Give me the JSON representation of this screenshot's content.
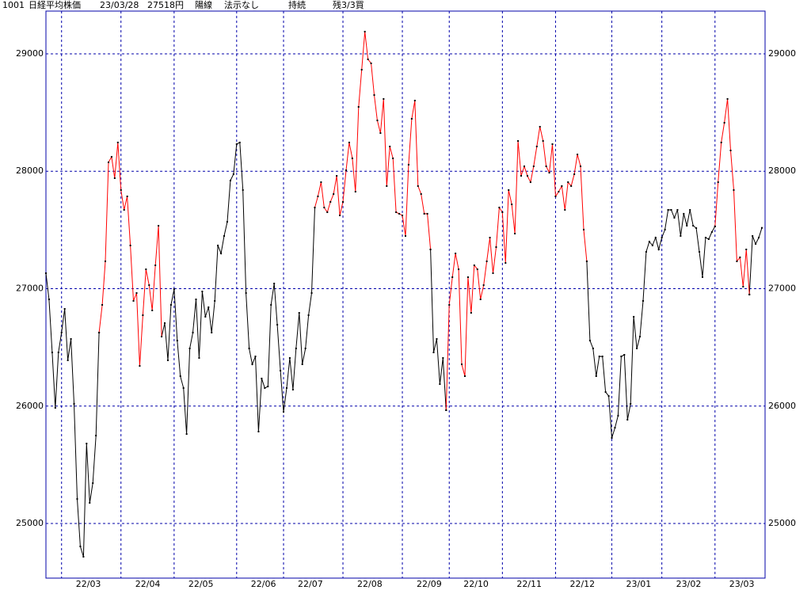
{
  "chart_data": {
    "type": "line",
    "header": {
      "code": "1001",
      "name": "日経平均株価",
      "date": "23/03/28",
      "price": "27518円",
      "candle": "陽線",
      "signal": "法示なし",
      "trend": "持続",
      "position": "残3/3買"
    },
    "categories": [
      null,
      null,
      null,
      null,
      null,
      "22/03",
      null,
      null,
      null,
      null,
      null,
      null,
      null,
      null,
      null,
      null,
      null,
      null,
      null,
      null,
      null,
      null,
      null,
      null,
      "22/04",
      null,
      null,
      null,
      null,
      null,
      null,
      null,
      null,
      null,
      null,
      null,
      null,
      null,
      null,
      null,
      null,
      "22/05",
      null,
      null,
      null,
      null,
      null,
      null,
      null,
      null,
      null,
      null,
      null,
      null,
      null,
      null,
      null,
      null,
      null,
      null,
      null,
      "22/06",
      null,
      null,
      null,
      null,
      null,
      null,
      null,
      null,
      null,
      null,
      null,
      null,
      null,
      null,
      "22/07",
      null,
      null,
      null,
      null,
      null,
      null,
      null,
      null,
      null,
      null,
      null,
      null,
      null,
      null,
      null,
      null,
      null,
      null,
      "22/08",
      null,
      null,
      null,
      null,
      null,
      null,
      null,
      null,
      null,
      null,
      null,
      null,
      null,
      null,
      null,
      null,
      null,
      null,
      "22/09",
      null,
      null,
      null,
      null,
      null,
      null,
      null,
      null,
      null,
      null,
      null,
      null,
      null,
      null,
      "22/10",
      null,
      null,
      null,
      null,
      null,
      null,
      null,
      null,
      null,
      null,
      null,
      null,
      null,
      null,
      null,
      null,
      "22/11",
      null,
      null,
      null,
      null,
      null,
      null,
      null,
      null,
      null,
      null,
      null,
      null,
      null,
      null,
      null,
      null,
      "22/12",
      null,
      null,
      null,
      null,
      null,
      null,
      null,
      null,
      null,
      null,
      null,
      null,
      null,
      null,
      null,
      null,
      null,
      "23/01",
      null,
      null,
      null,
      null,
      null,
      null,
      null,
      null,
      null,
      null,
      null,
      null,
      null,
      null,
      null,
      "23/02",
      null,
      null,
      null,
      null,
      null,
      null,
      null,
      null,
      null,
      null,
      null,
      null,
      null,
      null,
      null,
      null,
      "23/03",
      null,
      null,
      null,
      null,
      null,
      null,
      null,
      null,
      null,
      null,
      null,
      null,
      null,
      null,
      null
    ],
    "series": [
      {
        "color": "#000000",
        "values": [
          27132,
          26909,
          26457,
          25985,
          26457,
          26626,
          26828,
          26390,
          26572,
          26019,
          25209,
          24805,
          24717,
          25681,
          25176,
          25344,
          25749,
          26626,
          null,
          null,
          null,
          null,
          null,
          null,
          null,
          null,
          null,
          null,
          null,
          null,
          null,
          null,
          null,
          null,
          null,
          null,
          null,
          26592,
          26707,
          26390,
          26862,
          26997,
          26558,
          26255,
          26154,
          25762,
          26491,
          26626,
          26909,
          26410,
          26976,
          26761,
          26842,
          26626,
          26896,
          27368,
          27300,
          27449,
          27570,
          27921,
          27975,
          28231,
          28245,
          27840,
          26963,
          26491,
          26356,
          26423,
          25783,
          26235,
          26154,
          26167,
          26862,
          27044,
          26693,
          26302,
          25951,
          26154,
          26410,
          26140,
          26491,
          26794,
          26356,
          26491,
          26774,
          26963,
          27691,
          null,
          null,
          null,
          null,
          null,
          null,
          null,
          null,
          null,
          null,
          null,
          null,
          null,
          null,
          null,
          null,
          null,
          null,
          null,
          null,
          null,
          null,
          null,
          null,
          null,
          null,
          null,
          null,
          null,
          null,
          null,
          null,
          null,
          null,
          null,
          null,
          27334,
          26457,
          26572,
          26187,
          26410,
          25965,
          null,
          null,
          null,
          null,
          null,
          null,
          null,
          null,
          null,
          null,
          null,
          null,
          null,
          null,
          null,
          null,
          null,
          null,
          null,
          null,
          null,
          null,
          null,
          null,
          null,
          null,
          null,
          null,
          null,
          null,
          null,
          null,
          null,
          null,
          null,
          null,
          null,
          null,
          null,
          null,
          null,
          null,
          null,
          null,
          27233,
          26558,
          26491,
          26255,
          26423,
          26423,
          26120,
          26086,
          25729,
          25816,
          25918,
          26423,
          26437,
          25884,
          26019,
          26761,
          26491,
          26592,
          26896,
          27314,
          27401,
          27368,
          27435,
          27334,
          27435,
          27503,
          27671,
          27671,
          27604,
          27671,
          27449,
          27638,
          27536,
          27671,
          27536,
          27516,
          27314,
          27098,
          27435,
          27422,
          27482,
          27530,
          null,
          null,
          null,
          null,
          null,
          null,
          null,
          null,
          null,
          null,
          26950,
          27449,
          27381,
          27435,
          27518
        ]
      },
      {
        "color": "#ff0000",
        "values": [
          null,
          null,
          null,
          null,
          null,
          null,
          null,
          null,
          null,
          null,
          null,
          null,
          null,
          null,
          null,
          null,
          null,
          26626,
          26862,
          27233,
          28076,
          28123,
          27941,
          28245,
          27840,
          27671,
          27786,
          27368,
          26896,
          26963,
          26342,
          26774,
          27165,
          27030,
          26815,
          27199,
          27536,
          26592,
          null,
          null,
          null,
          null,
          null,
          null,
          null,
          null,
          null,
          null,
          null,
          null,
          null,
          null,
          null,
          null,
          null,
          null,
          null,
          null,
          null,
          null,
          null,
          null,
          null,
          null,
          null,
          null,
          null,
          null,
          null,
          null,
          null,
          null,
          null,
          null,
          null,
          null,
          null,
          null,
          null,
          null,
          null,
          null,
          null,
          null,
          null,
          null,
          27691,
          27786,
          27907,
          27691,
          27651,
          27739,
          27806,
          27961,
          27624,
          27739,
          28008,
          28245,
          28110,
          27826,
          28548,
          28865,
          29189,
          28953,
          28919,
          28649,
          28433,
          28325,
          28616,
          27874,
          28211,
          28110,
          27651,
          27638,
          27624,
          27449,
          28056,
          28447,
          28602,
          27874,
          27806,
          27638,
          27638,
          27334,
          null,
          null,
          null,
          null,
          25965,
          26862,
          27098,
          27300,
          27165,
          26356,
          26255,
          27098,
          26794,
          27199,
          27165,
          26909,
          27030,
          27233,
          27435,
          27132,
          27354,
          27691,
          27651,
          27219,
          27840,
          27718,
          27469,
          28258,
          27961,
          28042,
          27961,
          27907,
          28042,
          28211,
          28379,
          28258,
          28042,
          27988,
          28231,
          27786,
          27826,
          27874,
          27671,
          27907,
          27874,
          27975,
          28143,
          28042,
          27503,
          27233,
          null,
          null,
          null,
          null,
          null,
          null,
          null,
          null,
          null,
          null,
          null,
          null,
          null,
          null,
          null,
          null,
          null,
          null,
          null,
          null,
          null,
          null,
          null,
          null,
          null,
          null,
          null,
          null,
          null,
          null,
          null,
          null,
          null,
          null,
          null,
          null,
          null,
          null,
          null,
          null,
          27530,
          27907,
          28245,
          28413,
          28616,
          28177,
          27840,
          27233,
          27267,
          27017,
          27334,
          26950,
          null,
          null,
          null,
          null
        ]
      }
    ],
    "marker_color": "#000000",
    "ylim": [
      24535,
      29364
    ],
    "yticks": [
      25000,
      26000,
      27000,
      28000,
      29000
    ],
    "grid": true,
    "grid_color": "#0000aa",
    "frame_color": "#0000aa"
  }
}
